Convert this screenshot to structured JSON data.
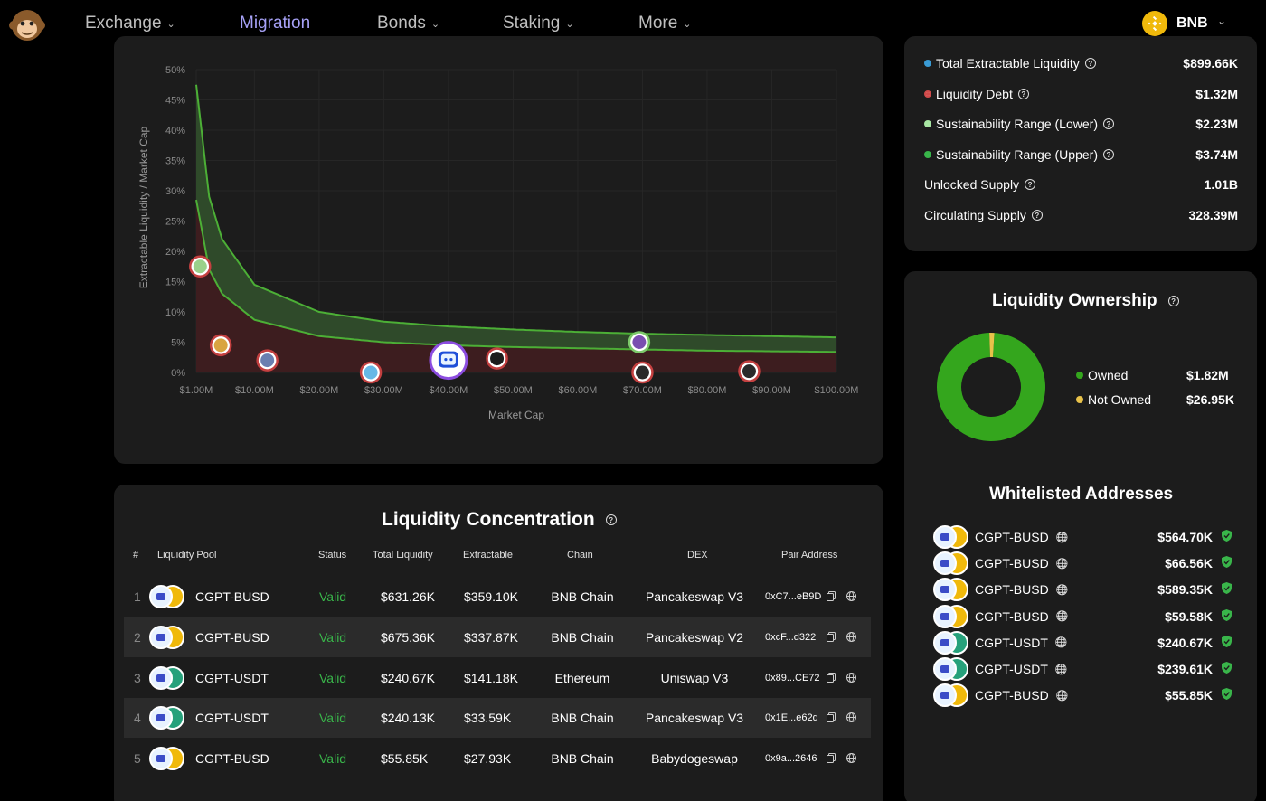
{
  "nav": {
    "items": [
      {
        "label": "Exchange",
        "has_menu": true,
        "active": false
      },
      {
        "label": "Migration",
        "has_menu": false,
        "active": true
      },
      {
        "label": "Bonds",
        "has_menu": true,
        "active": false
      },
      {
        "label": "Staking",
        "has_menu": true,
        "active": false
      },
      {
        "label": "More",
        "has_menu": true,
        "active": false
      }
    ],
    "network": "BNB"
  },
  "chart_data": {
    "type": "area",
    "xlabel": "Market Cap",
    "ylabel": "Extractable Liquidity / Market Cap",
    "x_ticks": [
      "$1.00M",
      "$10.00M",
      "$20.00M",
      "$30.00M",
      "$40.00M",
      "$50.00M",
      "$60.00M",
      "$70.00M",
      "$80.00M",
      "$90.00M",
      "$100.00M"
    ],
    "y_ticks": [
      "0%",
      "5%",
      "10%",
      "15%",
      "20%",
      "25%",
      "30%",
      "35%",
      "40%",
      "45%",
      "50%"
    ],
    "xlim": [
      1,
      100
    ],
    "ylim": [
      0,
      50
    ],
    "series": [
      {
        "role": "upper_bound",
        "x": [
          1,
          3,
          5,
          10,
          20,
          30,
          40,
          50,
          60,
          70,
          80,
          90,
          100
        ],
        "values": [
          47.5,
          29,
          22,
          14.5,
          10,
          8.4,
          7.6,
          7.1,
          6.7,
          6.4,
          6.2,
          6.0,
          5.8
        ]
      },
      {
        "role": "lower_bound",
        "x": [
          1,
          3,
          5,
          10,
          20,
          30,
          40,
          50,
          60,
          70,
          80,
          90,
          100
        ],
        "values": [
          28.5,
          17,
          13,
          8.7,
          6.0,
          5.0,
          4.5,
          4.2,
          4.0,
          3.8,
          3.6,
          3.5,
          3.4
        ]
      }
    ],
    "points": [
      {
        "x": 1.6,
        "y": 17.5,
        "icon": "token-icon-1"
      },
      {
        "x": 4.8,
        "y": 4.5,
        "icon": "token-icon-2"
      },
      {
        "x": 12.0,
        "y": 2.0,
        "icon": "ethereum-icon"
      },
      {
        "x": 28.0,
        "y": 0.0,
        "icon": "token-icon-3"
      },
      {
        "x": 40.0,
        "y": 2.0,
        "icon": "chaingpt-icon",
        "highlight": true
      },
      {
        "x": 47.5,
        "y": 2.3,
        "icon": "butterfly-icon"
      },
      {
        "x": 69.5,
        "y": 5.0,
        "icon": "horse-icon"
      },
      {
        "x": 70.0,
        "y": 0.0,
        "icon": "token-icon-4"
      },
      {
        "x": 86.5,
        "y": 0.2,
        "icon": "token-icon-5"
      }
    ],
    "colors": {
      "upper": "#4caf36",
      "lower": "#4caf36",
      "band": "#2f4a2a",
      "below": "#3d1d1f"
    }
  },
  "stats": [
    {
      "label": "Total Extractable Liquidity",
      "value": "$899.66K",
      "dot": "#3a9bd5",
      "dot_type": "circle"
    },
    {
      "label": "Liquidity Debt",
      "value": "$1.32M",
      "dot": "#d04a4a",
      "dot_type": "dash"
    },
    {
      "label": "Sustainability Range (Lower)",
      "value": "$2.23M",
      "dot": "#a8e6a3",
      "dot_type": "circle"
    },
    {
      "label": "Sustainability Range (Upper)",
      "value": "$3.74M",
      "dot": "#39b54a",
      "dot_type": "circle"
    },
    {
      "label": "Unlocked Supply",
      "value": "1.01B",
      "dot": "",
      "dot_type": "none"
    },
    {
      "label": "Circulating Supply",
      "value": "328.39M",
      "dot": "",
      "dot_type": "none"
    }
  ],
  "ownership": {
    "title": "Liquidity Ownership",
    "items": [
      {
        "label": "Owned",
        "value": "$1.82M",
        "amount": 1820000,
        "color": "#34a61d"
      },
      {
        "label": "Not Owned",
        "value": "$26.95K",
        "amount": 26950,
        "color": "#e8c24a"
      }
    ]
  },
  "whitelist": {
    "title": "Whitelisted Addresses",
    "items": [
      {
        "pair": "CGPT-BUSD",
        "value": "$564.70K",
        "quote": "busd"
      },
      {
        "pair": "CGPT-BUSD",
        "value": "$66.56K",
        "quote": "busd"
      },
      {
        "pair": "CGPT-BUSD",
        "value": "$589.35K",
        "quote": "busd"
      },
      {
        "pair": "CGPT-BUSD",
        "value": "$59.58K",
        "quote": "busd"
      },
      {
        "pair": "CGPT-USDT",
        "value": "$240.67K",
        "quote": "usdt"
      },
      {
        "pair": "CGPT-USDT",
        "value": "$239.61K",
        "quote": "usdt"
      },
      {
        "pair": "CGPT-BUSD",
        "value": "$55.85K",
        "quote": "busd"
      }
    ]
  },
  "concentration": {
    "title": "Liquidity Concentration",
    "headers": {
      "num": "#",
      "pool": "Liquidity Pool",
      "status": "Status",
      "total": "Total Liquidity",
      "extractable": "Extractable",
      "chain": "Chain",
      "dex": "DEX",
      "address": "Pair Address"
    },
    "rows": [
      {
        "num": "1",
        "pool": "CGPT-BUSD",
        "quote": "busd",
        "status": "Valid",
        "total": "$631.26K",
        "extractable": "$359.10K",
        "chain": "BNB Chain",
        "dex": "Pancakeswap V3",
        "address": "0xC7...eB9D"
      },
      {
        "num": "2",
        "pool": "CGPT-BUSD",
        "quote": "busd",
        "status": "Valid",
        "total": "$675.36K",
        "extractable": "$337.87K",
        "chain": "BNB Chain",
        "dex": "Pancakeswap V2",
        "address": "0xcF...d322"
      },
      {
        "num": "3",
        "pool": "CGPT-USDT",
        "quote": "usdt",
        "status": "Valid",
        "total": "$240.67K",
        "extractable": "$141.18K",
        "chain": "Ethereum",
        "dex": "Uniswap V3",
        "address": "0x89...CE72"
      },
      {
        "num": "4",
        "pool": "CGPT-USDT",
        "quote": "usdt",
        "status": "Valid",
        "total": "$240.13K",
        "extractable": "$33.59K",
        "chain": "BNB Chain",
        "dex": "Pancakeswap V3",
        "address": "0x1E...e62d"
      },
      {
        "num": "5",
        "pool": "CGPT-BUSD",
        "quote": "busd",
        "status": "Valid",
        "total": "$55.85K",
        "extractable": "$27.93K",
        "chain": "BNB Chain",
        "dex": "Babydogeswap",
        "address": "0x9a...2646"
      }
    ]
  }
}
